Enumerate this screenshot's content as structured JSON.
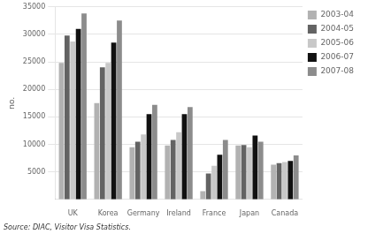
{
  "chart_data": {
    "type": "bar",
    "categories": [
      "UK",
      "Korea",
      "Germany",
      "Ireland",
      "France",
      "Japan",
      "Canada"
    ],
    "series": [
      {
        "name": "2003-04",
        "color": "#b2b2b2",
        "values": [
          24800,
          17500,
          9500,
          9800,
          1500,
          9800,
          6300
        ]
      },
      {
        "name": "2004-05",
        "color": "#636363",
        "values": [
          29800,
          24000,
          10500,
          10800,
          4700,
          9900,
          6600
        ]
      },
      {
        "name": "2005-06",
        "color": "#c8c8c8",
        "values": [
          28700,
          24800,
          11800,
          12200,
          6100,
          9500,
          6800
        ]
      },
      {
        "name": "2006-07",
        "color": "#111111",
        "values": [
          31000,
          28500,
          15500,
          15500,
          8100,
          11600,
          7000
        ]
      },
      {
        "name": "2007-08",
        "color": "#8c8c8c",
        "values": [
          33800,
          32500,
          17200,
          16800,
          10800,
          10500,
          8000
        ]
      }
    ],
    "ylabel": "no.",
    "annotations": [
      "Source: DIAC, Visitor Visa Statistics."
    ],
    "ylim": [
      0,
      35000
    ],
    "yticks": [
      5000,
      10000,
      15000,
      20000,
      25000,
      30000,
      35000
    ],
    "grid": true,
    "legend": "upper right"
  }
}
